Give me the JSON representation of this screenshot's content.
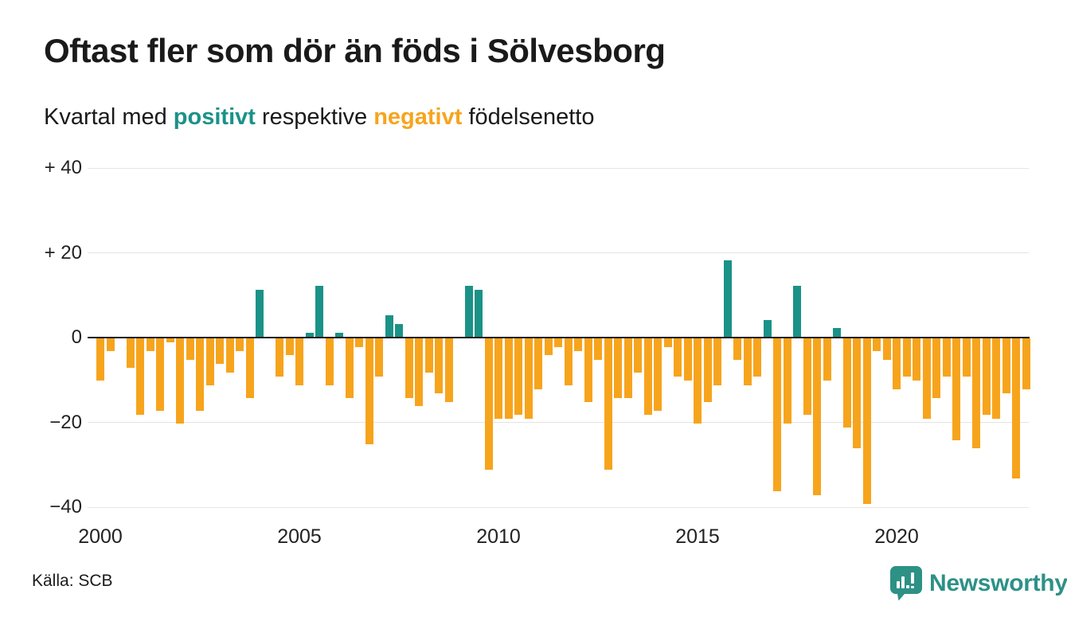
{
  "header": {
    "title": "Oftast fler som dör än föds i Sölvesborg",
    "subtitle": {
      "prefix": "Kvartal med ",
      "positive_word": "positivt",
      "middle": " respektive ",
      "negative_word": "negativt",
      "suffix": " födelsenetto"
    }
  },
  "footer": {
    "source": "Källa: SCB",
    "brand": "Newsworthy"
  },
  "colors": {
    "positive_teal": "#1B9287",
    "negative_orange": "#F7A41D",
    "logo_teal": "#2D9186",
    "grid": "#E4E4E4",
    "zero_line": "#1A1A1A",
    "text": "#1A1A1A"
  },
  "chart_data": {
    "type": "bar",
    "title": "Oftast fler som dör än föds i Sölvesborg",
    "subtitle": "Kvartal med positivt respektive negativt födelsenetto",
    "x_period": "quarterly",
    "x_start": "2000 Q1",
    "x_end": "2023 Q2",
    "start_year": 2000,
    "values": [
      -10,
      -3,
      0,
      -7,
      -18,
      -3,
      -17,
      -1,
      -20,
      -5,
      -17,
      -11,
      -6,
      -8,
      -3,
      -14,
      11,
      0,
      -9,
      -4,
      -11,
      1,
      12,
      -11,
      1,
      -14,
      -2,
      -25,
      -9,
      5,
      3,
      -14,
      -16,
      -8,
      -13,
      -15,
      0,
      12,
      11,
      -31,
      -19,
      -19,
      -18,
      -19,
      -12,
      -4,
      -2,
      -11,
      -3,
      -15,
      -5,
      -31,
      -14,
      -14,
      -8,
      -18,
      -17,
      -2,
      -9,
      -10,
      -20,
      -15,
      -11,
      18,
      -5,
      -11,
      -9,
      4,
      -36,
      -20,
      12,
      -18,
      -37,
      -10,
      2,
      -21,
      -26,
      -39,
      -3,
      -5,
      -12,
      -9,
      -10,
      -19,
      -14,
      -9,
      -24,
      -9,
      -26,
      -18,
      -19,
      -13,
      -33,
      -12
    ],
    "series_rule": "positive quarters teal, negative quarters orange",
    "y_ticks": [
      {
        "value": 40,
        "label": "+ 40"
      },
      {
        "value": 20,
        "label": "+ 20"
      },
      {
        "value": 0,
        "label": "0"
      },
      {
        "value": -20,
        "label": "−20"
      },
      {
        "value": -40,
        "label": "−40"
      }
    ],
    "x_ticks": [
      {
        "index": 0,
        "label": "2000"
      },
      {
        "index": 20,
        "label": "2005"
      },
      {
        "index": 40,
        "label": "2010"
      },
      {
        "index": 60,
        "label": "2015"
      },
      {
        "index": 80,
        "label": "2020"
      }
    ],
    "ylim": [
      -42,
      42
    ],
    "grid": true,
    "legend_position": "none"
  }
}
